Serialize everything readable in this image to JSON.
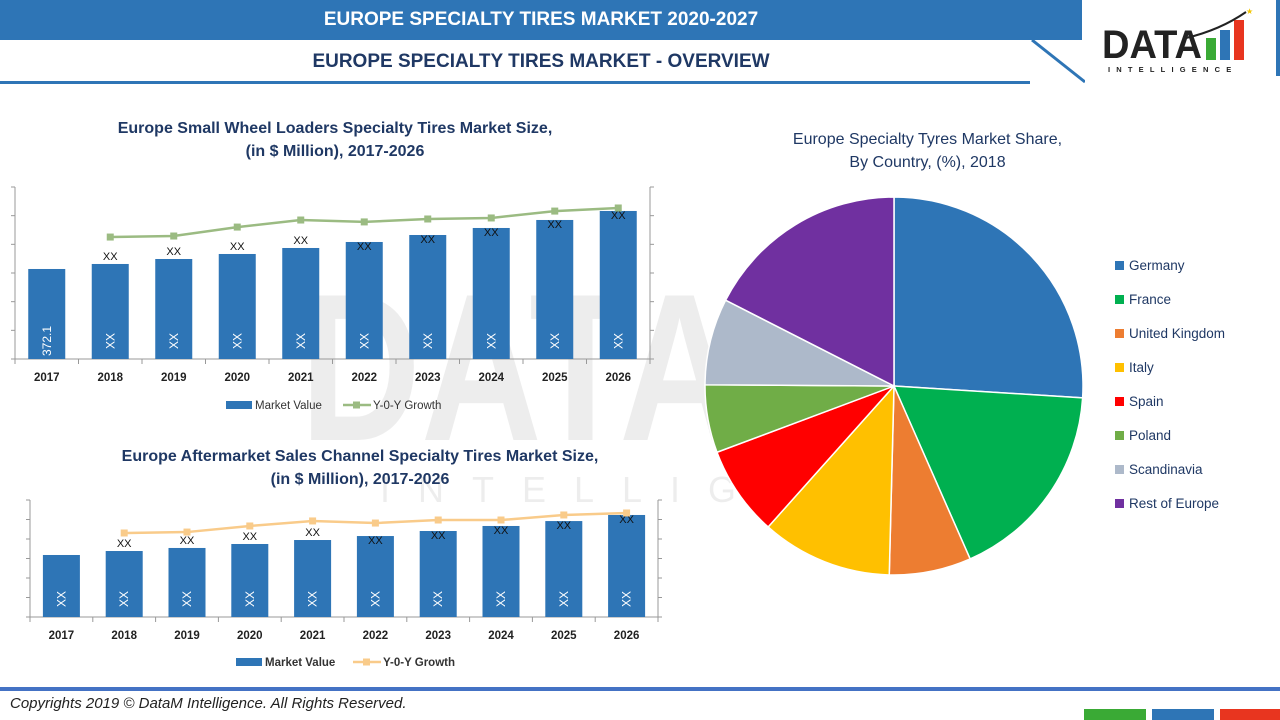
{
  "header": {
    "title": "EUROPE SPECIALTY TIRES MARKET 2020-2027",
    "subtitle": "EUROPE SPECIALTY TIRES MARKET - OVERVIEW"
  },
  "logo": {
    "text": "DATA",
    "subtext": "INTELLIGENCE",
    "bar_colors": [
      "#3aaa35",
      "#2e75b6",
      "#e8351f"
    ]
  },
  "watermark": {
    "text": "DATA",
    "subtext": "INTELLIGENCE"
  },
  "colors": {
    "primary": "#2e75b6",
    "title_text": "#1f3864",
    "bar": "#2e75b6",
    "growth_line_1": "#9bbb82",
    "growth_line_2": "#f9cb8a"
  },
  "chart_data": [
    {
      "type": "bar",
      "title_line1": "Europe Small Wheel Loaders Specialty Tires Market Size,",
      "title_line2": "(in $ Million), 2017-2026",
      "categories": [
        "2017",
        "2018",
        "2019",
        "2020",
        "2021",
        "2022",
        "2023",
        "2024",
        "2025",
        "2026"
      ],
      "series": [
        {
          "name": "Market Value",
          "kind": "bar",
          "values": [
            372.1,
            392.8,
            413.4,
            434.1,
            458.9,
            483.7,
            512.6,
            541.6,
            574.7,
            611.9
          ],
          "inner_labels": [
            "372.1",
            "XX",
            "XX",
            "XX",
            "XX",
            "XX",
            "XX",
            "XX",
            "XX",
            "XX"
          ],
          "top_labels": [
            "",
            "XX",
            "XX",
            "XX",
            "XX",
            "XX",
            "XX",
            "XX",
            "XX",
            "XX"
          ]
        },
        {
          "name": "Y-0-Y Growth",
          "kind": "line",
          "values": [
            null,
            70.9,
            71.5,
            76.7,
            80.8,
            79.7,
            81.4,
            82.0,
            86.0,
            87.8
          ]
        }
      ],
      "ylim": [
        0,
        711
      ],
      "y2lim": [
        0,
        100
      ],
      "legend": "bottom",
      "grid": false
    },
    {
      "type": "bar",
      "title_line1": "Europe Aftermarket Sales Channel Specialty Tires Market Size,",
      "title_line2": "(in $ Million), 2017-2026",
      "categories": [
        "2017",
        "2018",
        "2019",
        "2020",
        "2021",
        "2022",
        "2023",
        "2024",
        "2025",
        "2026"
      ],
      "series": [
        {
          "name": "Market Value",
          "kind": "bar",
          "values": [
            53.0,
            56.4,
            59.0,
            62.4,
            65.8,
            69.2,
            73.5,
            77.8,
            82.0,
            87.2
          ],
          "inner_labels": [
            "XX",
            "XX",
            "XX",
            "XX",
            "XX",
            "XX",
            "XX",
            "XX",
            "XX",
            "XX"
          ],
          "top_labels": [
            "",
            "XX",
            "XX",
            "XX",
            "XX",
            "XX",
            "XX",
            "XX",
            "XX",
            "XX"
          ]
        },
        {
          "name": "Y-0-Y Growth",
          "kind": "line",
          "values": [
            null,
            71.8,
            72.6,
            77.8,
            82.1,
            80.3,
            82.9,
            82.9,
            87.2,
            88.9
          ]
        }
      ],
      "ylim": [
        0,
        100
      ],
      "y2lim": [
        0,
        100
      ],
      "legend": "bottom",
      "grid": false
    },
    {
      "type": "pie",
      "title_line1": "Europe Specialty Tyres Market Share,",
      "title_line2": "By Country, (%), 2018",
      "slices": [
        {
          "label": "Germany",
          "value": 26.0,
          "color": "#2e75b6"
        },
        {
          "label": "France",
          "value": 17.4,
          "color": "#00b050"
        },
        {
          "label": "United Kingdom",
          "value": 7.0,
          "color": "#ed7d31"
        },
        {
          "label": "Italy",
          "value": 11.2,
          "color": "#ffc000"
        },
        {
          "label": "Spain",
          "value": 7.7,
          "color": "#ff0000"
        },
        {
          "label": "Poland",
          "value": 5.8,
          "color": "#70ad47"
        },
        {
          "label": "Scandinavia",
          "value": 7.4,
          "color": "#adb9ca"
        },
        {
          "label": "Rest of Europe",
          "value": 17.5,
          "color": "#7030a0"
        }
      ],
      "legend": "right"
    }
  ],
  "footer": {
    "copyright": "Copyrights 2019 © DataM Intelligence. All Rights Reserved."
  }
}
